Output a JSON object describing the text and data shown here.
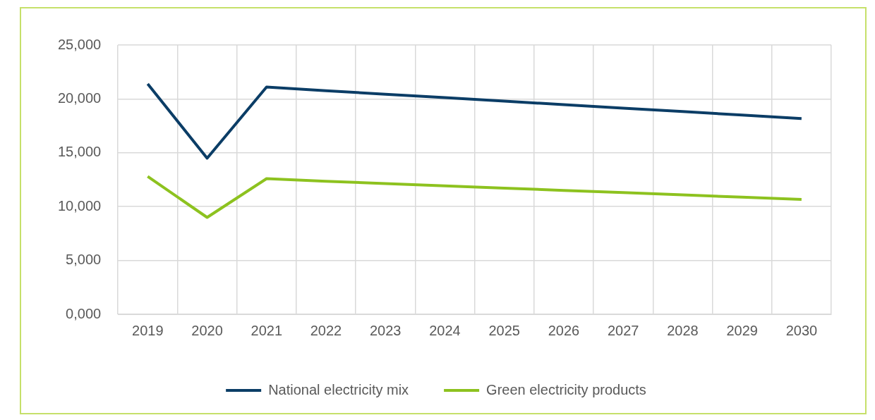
{
  "chart_data": {
    "type": "line",
    "categories": [
      "2019",
      "2020",
      "2021",
      "2022",
      "2023",
      "2024",
      "2025",
      "2026",
      "2027",
      "2028",
      "2029",
      "2030"
    ],
    "series": [
      {
        "name": "National electricity mix",
        "color": "#0b3d66",
        "values": [
          21400,
          14500,
          21100,
          20770,
          20440,
          20120,
          19800,
          19470,
          19150,
          18830,
          18500,
          18180
        ]
      },
      {
        "name": "Green electricity products",
        "color": "#8dc21f",
        "values": [
          12800,
          9000,
          12600,
          12350,
          12140,
          11930,
          11720,
          11510,
          11300,
          11090,
          10880,
          10670
        ]
      }
    ],
    "ylim": [
      0,
      25000
    ],
    "yticks": [
      {
        "value": 0,
        "label": "0,000"
      },
      {
        "value": 5000,
        "label": "5,000"
      },
      {
        "value": 10000,
        "label": "10,000"
      },
      {
        "value": 15000,
        "label": "15,000"
      },
      {
        "value": 20000,
        "label": "20,000"
      },
      {
        "value": 25000,
        "label": "25,000"
      }
    ],
    "grid": true,
    "legend": "bottom",
    "marker": "none",
    "line_style": "solid"
  }
}
